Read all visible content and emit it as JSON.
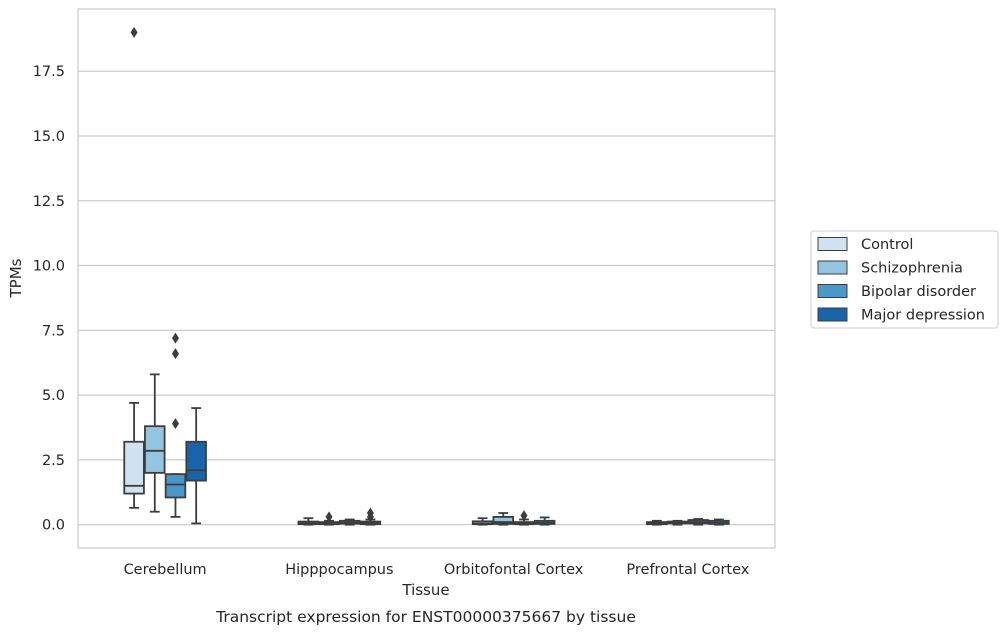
{
  "chart_data": {
    "type": "box",
    "title": "Transcript expression for ENST00000375667 by tissue",
    "xlabel": "Tissue",
    "ylabel": "TPMs",
    "ylim": [
      -0.9,
      19.9
    ],
    "yticks": [
      "0.0",
      "2.5",
      "5.0",
      "7.5",
      "10.0",
      "12.5",
      "15.0",
      "17.5"
    ],
    "grid": "horizontal",
    "legend_position": "right",
    "categories": [
      "Cerebellum",
      "Hipppocampus",
      "Orbitofontal Cortex",
      "Prefrontal Cortex"
    ],
    "series": [
      {
        "name": "Control",
        "color": "#d0e1f2",
        "boxes": [
          {
            "whisker_low": 0.65,
            "q1": 1.2,
            "median": 1.5,
            "q3": 3.2,
            "whisker_high": 4.7,
            "outliers": [
              19.0
            ]
          },
          {
            "whisker_low": 0.0,
            "q1": 0.02,
            "median": 0.05,
            "q3": 0.12,
            "whisker_high": 0.25,
            "outliers": []
          },
          {
            "whisker_low": 0.0,
            "q1": 0.02,
            "median": 0.05,
            "q3": 0.13,
            "whisker_high": 0.25,
            "outliers": []
          },
          {
            "whisker_low": 0.0,
            "q1": 0.02,
            "median": 0.05,
            "q3": 0.1,
            "whisker_high": 0.15,
            "outliers": []
          }
        ]
      },
      {
        "name": "Schizophrenia",
        "color": "#94c4df",
        "boxes": [
          {
            "whisker_low": 0.5,
            "q1": 2.0,
            "median": 2.85,
            "q3": 3.8,
            "whisker_high": 5.8,
            "outliers": []
          },
          {
            "whisker_low": 0.0,
            "q1": 0.02,
            "median": 0.05,
            "q3": 0.1,
            "whisker_high": 0.15,
            "outliers": [
              0.3
            ]
          },
          {
            "whisker_low": 0.0,
            "q1": 0.03,
            "median": 0.1,
            "q3": 0.3,
            "whisker_high": 0.45,
            "outliers": []
          },
          {
            "whisker_low": 0.0,
            "q1": 0.05,
            "median": 0.08,
            "q3": 0.12,
            "whisker_high": 0.15,
            "outliers": []
          }
        ]
      },
      {
        "name": "Bipolar disorder",
        "color": "#4a98c9",
        "boxes": [
          {
            "whisker_low": 0.3,
            "q1": 1.05,
            "median": 1.55,
            "q3": 1.95,
            "whisker_high": 1.95,
            "outliers": [
              3.9,
              6.6,
              7.2
            ]
          },
          {
            "whisker_low": 0.0,
            "q1": 0.04,
            "median": 0.08,
            "q3": 0.15,
            "whisker_high": 0.2,
            "outliers": []
          },
          {
            "whisker_low": 0.0,
            "q1": 0.02,
            "median": 0.05,
            "q3": 0.1,
            "whisker_high": 0.2,
            "outliers": [
              0.35
            ]
          },
          {
            "whisker_low": 0.0,
            "q1": 0.05,
            "median": 0.1,
            "q3": 0.18,
            "whisker_high": 0.22,
            "outliers": []
          }
        ]
      },
      {
        "name": "Major depression",
        "color": "#1764ab",
        "boxes": [
          {
            "whisker_low": 0.05,
            "q1": 1.7,
            "median": 2.1,
            "q3": 3.2,
            "whisker_high": 4.5,
            "outliers": []
          },
          {
            "whisker_low": 0.0,
            "q1": 0.02,
            "median": 0.05,
            "q3": 0.12,
            "whisker_high": 0.2,
            "outliers": [
              0.3,
              0.45
            ]
          },
          {
            "whisker_low": 0.0,
            "q1": 0.03,
            "median": 0.06,
            "q3": 0.15,
            "whisker_high": 0.28,
            "outliers": []
          },
          {
            "whisker_low": 0.0,
            "q1": 0.03,
            "median": 0.06,
            "q3": 0.15,
            "whisker_high": 0.2,
            "outliers": []
          }
        ]
      }
    ]
  }
}
